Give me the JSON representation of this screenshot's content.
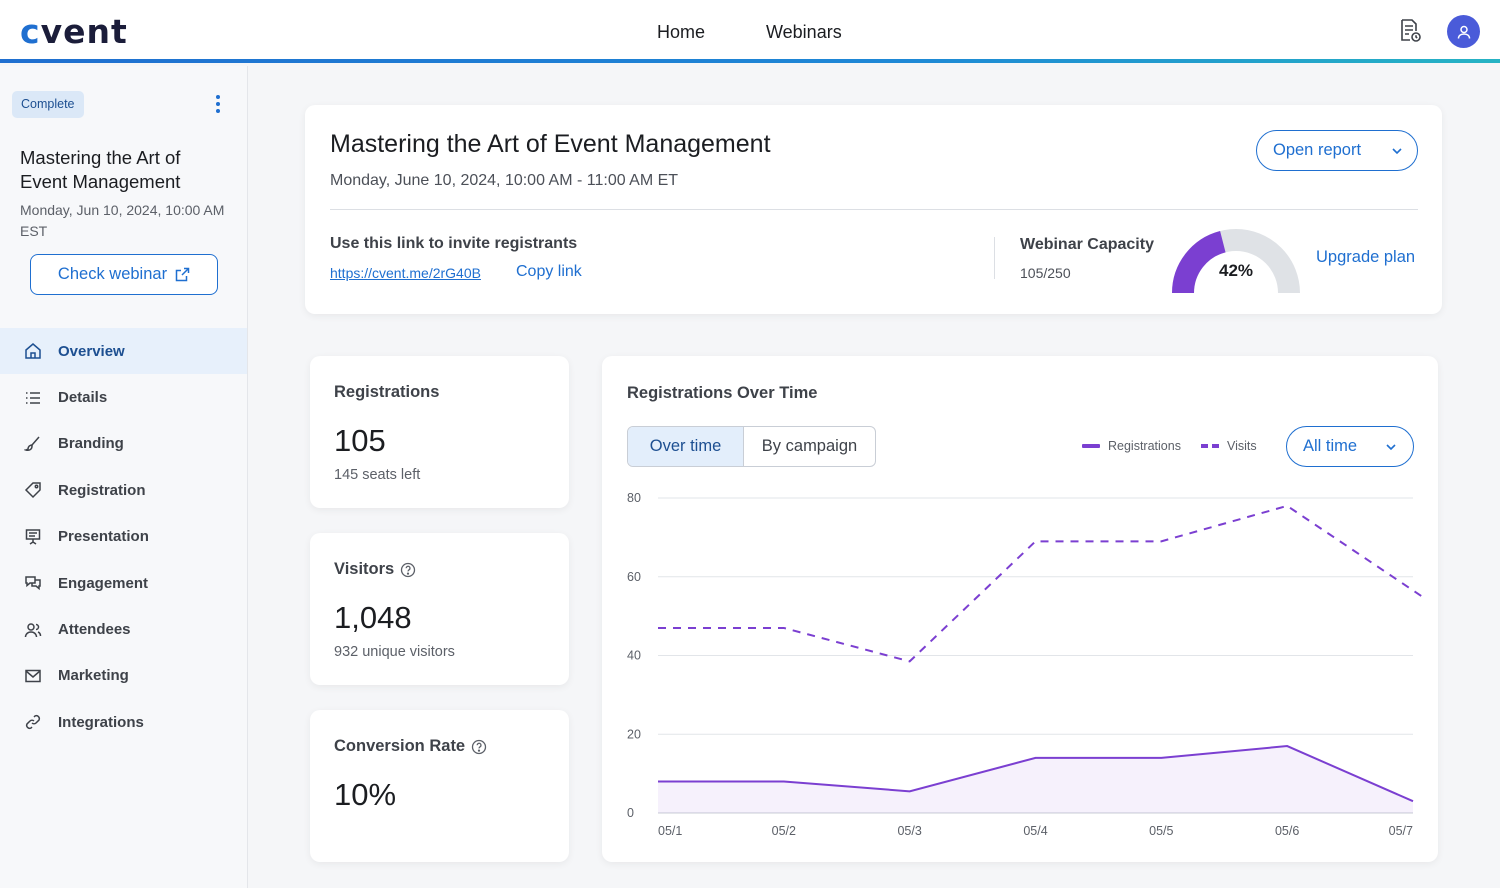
{
  "brand": {
    "logo_text": "cvent",
    "logo_accent": "c",
    "accent_color": "#1f6fd0",
    "series_color": "#7b3fd1"
  },
  "nav": {
    "home": "Home",
    "webinars": "Webinars"
  },
  "icons": {
    "doc": "document-settings-icon",
    "avatar": "user-icon"
  },
  "sidebar": {
    "status": "Complete",
    "title": "Mastering the Art of Event Management",
    "date": "Monday, Jun 10, 2024, 10:00 AM EST",
    "check_webinar": "Check webinar",
    "items": [
      {
        "label": "Overview",
        "icon": "home-icon"
      },
      {
        "label": "Details",
        "icon": "list-icon"
      },
      {
        "label": "Branding",
        "icon": "brush-icon"
      },
      {
        "label": "Registration",
        "icon": "tag-icon"
      },
      {
        "label": "Presentation",
        "icon": "presentation-icon"
      },
      {
        "label": "Engagement",
        "icon": "chat-icon"
      },
      {
        "label": "Attendees",
        "icon": "people-icon"
      },
      {
        "label": "Marketing",
        "icon": "mail-icon"
      },
      {
        "label": "Integrations",
        "icon": "link-icon"
      }
    ]
  },
  "header": {
    "title": "Mastering the Art of Event Management",
    "date": "Monday, June 10, 2024, 10:00 AM - 11:00 AM ET",
    "open_report": "Open report",
    "invite_label": "Use this link to invite registrants",
    "invite_url": "https://cvent.me/2rG40B",
    "copy_link": "Copy link",
    "capacity_label": "Webinar Capacity",
    "capacity_value": "105/250",
    "capacity_fraction": 0.42,
    "capacity_pct": "42%",
    "upgrade": "Upgrade plan"
  },
  "stats": {
    "registrations": {
      "label": "Registrations",
      "value": "105",
      "sub": "145 seats left"
    },
    "visitors": {
      "label": "Visitors",
      "value": "1,048",
      "sub": "932 unique visitors"
    },
    "conversion": {
      "label": "Conversion Rate",
      "value": "10%"
    }
  },
  "chart": {
    "title": "Registrations Over Time",
    "tab_over_time": "Over time",
    "tab_by_campaign": "By campaign",
    "range": "All time"
  },
  "chart_data": {
    "type": "line",
    "x": [
      "05/1",
      "05/2",
      "05/3",
      "05/4",
      "05/5",
      "05/6",
      "05/7"
    ],
    "y_ticks": [
      0,
      20,
      40,
      60,
      80
    ],
    "ylim": [
      0,
      80
    ],
    "legend_placement": "top-right",
    "series": [
      {
        "name": "Registrations",
        "style": "solid-area",
        "values": [
          8,
          8,
          5.5,
          14,
          14,
          17,
          3
        ]
      },
      {
        "name": "Visits",
        "style": "dashed",
        "values": [
          47,
          47,
          38.5,
          69,
          69,
          78,
          55
        ]
      }
    ]
  }
}
